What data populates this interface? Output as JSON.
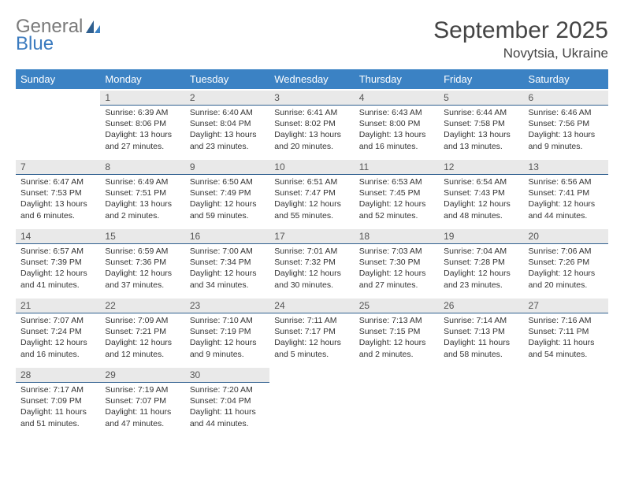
{
  "logo": {
    "word1": "General",
    "word2": "Blue"
  },
  "header": {
    "title": "September 2025",
    "location": "Novytsia, Ukraine"
  },
  "colors": {
    "header_bg": "#3b82c4",
    "header_text": "#ffffff",
    "daynum_bg": "#e9e9e9",
    "daynum_border": "#2f5f8f",
    "logo_gray": "#7a7a7a",
    "logo_blue": "#3b7bbf"
  },
  "weekdays": [
    "Sunday",
    "Monday",
    "Tuesday",
    "Wednesday",
    "Thursday",
    "Friday",
    "Saturday"
  ],
  "weeks": [
    [
      null,
      {
        "n": "1",
        "sr": "Sunrise: 6:39 AM",
        "ss": "Sunset: 8:06 PM",
        "dl": "Daylight: 13 hours and 27 minutes."
      },
      {
        "n": "2",
        "sr": "Sunrise: 6:40 AM",
        "ss": "Sunset: 8:04 PM",
        "dl": "Daylight: 13 hours and 23 minutes."
      },
      {
        "n": "3",
        "sr": "Sunrise: 6:41 AM",
        "ss": "Sunset: 8:02 PM",
        "dl": "Daylight: 13 hours and 20 minutes."
      },
      {
        "n": "4",
        "sr": "Sunrise: 6:43 AM",
        "ss": "Sunset: 8:00 PM",
        "dl": "Daylight: 13 hours and 16 minutes."
      },
      {
        "n": "5",
        "sr": "Sunrise: 6:44 AM",
        "ss": "Sunset: 7:58 PM",
        "dl": "Daylight: 13 hours and 13 minutes."
      },
      {
        "n": "6",
        "sr": "Sunrise: 6:46 AM",
        "ss": "Sunset: 7:56 PM",
        "dl": "Daylight: 13 hours and 9 minutes."
      }
    ],
    [
      {
        "n": "7",
        "sr": "Sunrise: 6:47 AM",
        "ss": "Sunset: 7:53 PM",
        "dl": "Daylight: 13 hours and 6 minutes."
      },
      {
        "n": "8",
        "sr": "Sunrise: 6:49 AM",
        "ss": "Sunset: 7:51 PM",
        "dl": "Daylight: 13 hours and 2 minutes."
      },
      {
        "n": "9",
        "sr": "Sunrise: 6:50 AM",
        "ss": "Sunset: 7:49 PM",
        "dl": "Daylight: 12 hours and 59 minutes."
      },
      {
        "n": "10",
        "sr": "Sunrise: 6:51 AM",
        "ss": "Sunset: 7:47 PM",
        "dl": "Daylight: 12 hours and 55 minutes."
      },
      {
        "n": "11",
        "sr": "Sunrise: 6:53 AM",
        "ss": "Sunset: 7:45 PM",
        "dl": "Daylight: 12 hours and 52 minutes."
      },
      {
        "n": "12",
        "sr": "Sunrise: 6:54 AM",
        "ss": "Sunset: 7:43 PM",
        "dl": "Daylight: 12 hours and 48 minutes."
      },
      {
        "n": "13",
        "sr": "Sunrise: 6:56 AM",
        "ss": "Sunset: 7:41 PM",
        "dl": "Daylight: 12 hours and 44 minutes."
      }
    ],
    [
      {
        "n": "14",
        "sr": "Sunrise: 6:57 AM",
        "ss": "Sunset: 7:39 PM",
        "dl": "Daylight: 12 hours and 41 minutes."
      },
      {
        "n": "15",
        "sr": "Sunrise: 6:59 AM",
        "ss": "Sunset: 7:36 PM",
        "dl": "Daylight: 12 hours and 37 minutes."
      },
      {
        "n": "16",
        "sr": "Sunrise: 7:00 AM",
        "ss": "Sunset: 7:34 PM",
        "dl": "Daylight: 12 hours and 34 minutes."
      },
      {
        "n": "17",
        "sr": "Sunrise: 7:01 AM",
        "ss": "Sunset: 7:32 PM",
        "dl": "Daylight: 12 hours and 30 minutes."
      },
      {
        "n": "18",
        "sr": "Sunrise: 7:03 AM",
        "ss": "Sunset: 7:30 PM",
        "dl": "Daylight: 12 hours and 27 minutes."
      },
      {
        "n": "19",
        "sr": "Sunrise: 7:04 AM",
        "ss": "Sunset: 7:28 PM",
        "dl": "Daylight: 12 hours and 23 minutes."
      },
      {
        "n": "20",
        "sr": "Sunrise: 7:06 AM",
        "ss": "Sunset: 7:26 PM",
        "dl": "Daylight: 12 hours and 20 minutes."
      }
    ],
    [
      {
        "n": "21",
        "sr": "Sunrise: 7:07 AM",
        "ss": "Sunset: 7:24 PM",
        "dl": "Daylight: 12 hours and 16 minutes."
      },
      {
        "n": "22",
        "sr": "Sunrise: 7:09 AM",
        "ss": "Sunset: 7:21 PM",
        "dl": "Daylight: 12 hours and 12 minutes."
      },
      {
        "n": "23",
        "sr": "Sunrise: 7:10 AM",
        "ss": "Sunset: 7:19 PM",
        "dl": "Daylight: 12 hours and 9 minutes."
      },
      {
        "n": "24",
        "sr": "Sunrise: 7:11 AM",
        "ss": "Sunset: 7:17 PM",
        "dl": "Daylight: 12 hours and 5 minutes."
      },
      {
        "n": "25",
        "sr": "Sunrise: 7:13 AM",
        "ss": "Sunset: 7:15 PM",
        "dl": "Daylight: 12 hours and 2 minutes."
      },
      {
        "n": "26",
        "sr": "Sunrise: 7:14 AM",
        "ss": "Sunset: 7:13 PM",
        "dl": "Daylight: 11 hours and 58 minutes."
      },
      {
        "n": "27",
        "sr": "Sunrise: 7:16 AM",
        "ss": "Sunset: 7:11 PM",
        "dl": "Daylight: 11 hours and 54 minutes."
      }
    ],
    [
      {
        "n": "28",
        "sr": "Sunrise: 7:17 AM",
        "ss": "Sunset: 7:09 PM",
        "dl": "Daylight: 11 hours and 51 minutes."
      },
      {
        "n": "29",
        "sr": "Sunrise: 7:19 AM",
        "ss": "Sunset: 7:07 PM",
        "dl": "Daylight: 11 hours and 47 minutes."
      },
      {
        "n": "30",
        "sr": "Sunrise: 7:20 AM",
        "ss": "Sunset: 7:04 PM",
        "dl": "Daylight: 11 hours and 44 minutes."
      },
      null,
      null,
      null,
      null
    ]
  ]
}
